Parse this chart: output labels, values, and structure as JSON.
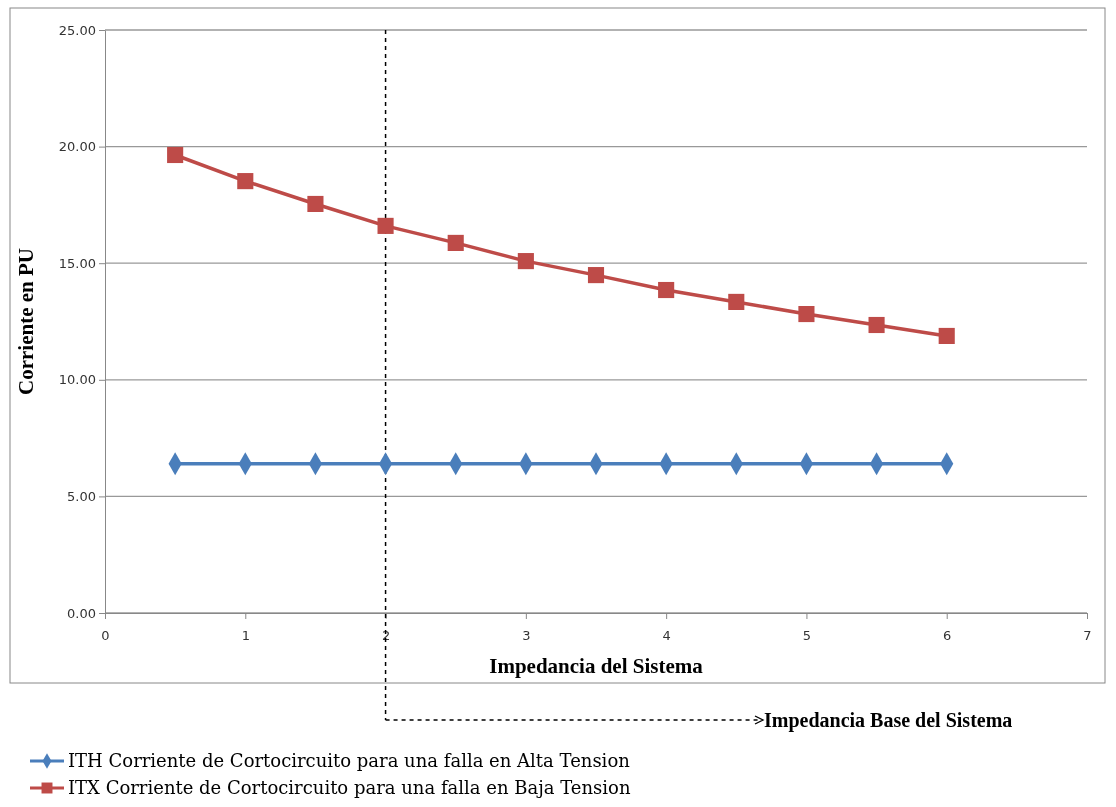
{
  "chart_data": {
    "type": "line",
    "xlabel": "Impedancia del Sistema",
    "ylabel": "Corriente en PU",
    "x": [
      0.5,
      1,
      1.5,
      2,
      2.5,
      3,
      3.5,
      4,
      4.5,
      5,
      5.5,
      6
    ],
    "series": [
      {
        "name": "ITH Corriente de Cortocircuito para una falla en Alta Tension",
        "color": "#4a7ebb",
        "marker": "diamond",
        "values": [
          6.4,
          6.4,
          6.4,
          6.4,
          6.4,
          6.4,
          6.4,
          6.4,
          6.4,
          6.4,
          6.4,
          6.4
        ]
      },
      {
        "name": "ITX Corriente de Cortocircuito para una falla en Baja Tension",
        "color": "#be4b48",
        "marker": "square",
        "values": [
          19.64,
          18.52,
          17.54,
          16.6,
          15.87,
          15.09,
          14.49,
          13.85,
          13.34,
          12.82,
          12.35,
          11.88
        ]
      }
    ],
    "xlim": [
      0,
      7
    ],
    "xticks": [
      0,
      1,
      2,
      3,
      4,
      5,
      6,
      7
    ],
    "ylim": [
      0,
      25
    ],
    "yticks": [
      {
        "value": 0,
        "label": "0.00"
      },
      {
        "value": 5,
        "label": "5.00"
      },
      {
        "value": 10,
        "label": "10.00"
      },
      {
        "value": 15,
        "label": "15.00"
      },
      {
        "value": 20,
        "label": "20.00"
      },
      {
        "value": 25,
        "label": "25.00"
      }
    ],
    "grid": "y",
    "legend": "bottom",
    "ref_lines": [
      {
        "axis": "x",
        "value": 2,
        "label": "Impedancia Base del Sistema",
        "color": "#000000",
        "line_style": "dashed"
      }
    ]
  }
}
